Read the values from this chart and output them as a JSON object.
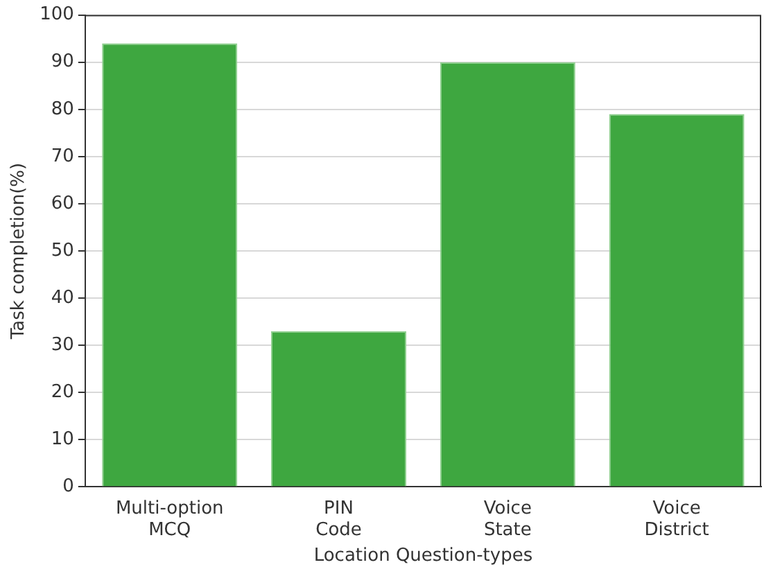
{
  "chart_data": {
    "type": "bar",
    "xlabel": "Location Question-types",
    "ylabel": "Task completion(%)",
    "categories": [
      "Multi-option\nMCQ",
      "PIN\nCode",
      "Voice\nState",
      "Voice\nDistrict"
    ],
    "values": [
      94,
      33,
      90,
      79
    ],
    "color": "#3ea740",
    "ylim": [
      0,
      100
    ],
    "yticks": [
      0,
      10,
      20,
      30,
      40,
      50,
      60,
      70,
      80,
      90,
      100
    ],
    "grid": "y"
  }
}
